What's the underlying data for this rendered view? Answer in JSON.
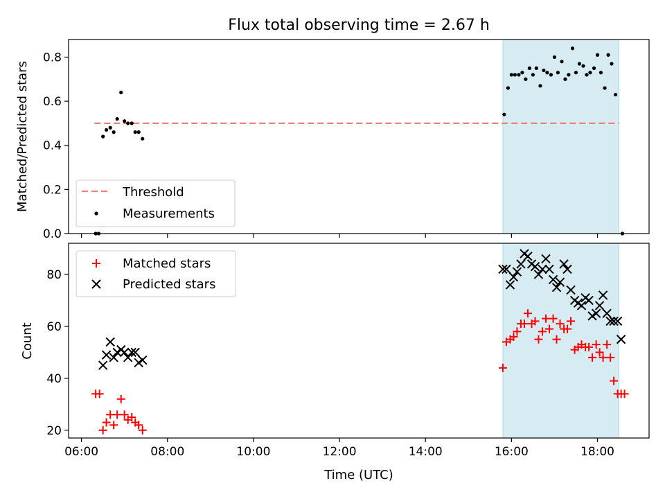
{
  "chart_data": {
    "type": "scatter",
    "title": "Flux total observing time = 2.67 h",
    "xlabel": "Time (UTC)",
    "x_tick_labels": [
      "06:00",
      "08:00",
      "10:00",
      "12:00",
      "14:00",
      "16:00",
      "18:00"
    ],
    "x_tick_hours": [
      6,
      8,
      10,
      12,
      14,
      16,
      18
    ],
    "xlim_hours": [
      5.7,
      19.2
    ],
    "highlight_span_hours": [
      15.8,
      18.5
    ],
    "colors": {
      "threshold": "#f08080",
      "measurement": "#000000",
      "matched": "#ff0000",
      "predicted": "#000000",
      "span": "#add8e6"
    },
    "panels": [
      {
        "name": "ratio",
        "ylabel": "Matched/Predicted stars",
        "ylim": [
          0,
          0.88
        ],
        "y_ticks": [
          0,
          0.2,
          0.4,
          0.6,
          0.8
        ],
        "y_tick_labels": [
          "0.0",
          "0.2",
          "0.4",
          "0.6",
          "0.8"
        ],
        "legend": {
          "placement": "lower-left",
          "entries": [
            "Threshold",
            "Measurements"
          ]
        },
        "threshold": {
          "name": "Threshold",
          "value": 0.5,
          "x_range_hours": [
            6.3,
            18.5
          ]
        },
        "measurements": {
          "name": "Measurements",
          "x_hours": [
            6.33,
            6.4,
            6.5,
            6.58,
            6.67,
            6.75,
            6.83,
            6.92,
            7.0,
            7.08,
            7.17,
            7.25,
            7.33,
            7.42,
            15.83,
            15.92,
            16.0,
            16.08,
            16.17,
            16.25,
            16.33,
            16.42,
            16.5,
            16.58,
            16.67,
            16.75,
            16.83,
            16.92,
            17.0,
            17.08,
            17.17,
            17.25,
            17.33,
            17.42,
            17.5,
            17.58,
            17.67,
            17.75,
            17.83,
            17.92,
            18.0,
            18.08,
            18.17,
            18.25,
            18.33,
            18.42,
            18.58
          ],
          "y": [
            0.0,
            0.0,
            0.44,
            0.47,
            0.48,
            0.46,
            0.52,
            0.64,
            0.51,
            0.5,
            0.5,
            0.46,
            0.46,
            0.43,
            0.54,
            0.66,
            0.72,
            0.72,
            0.72,
            0.73,
            0.7,
            0.75,
            0.72,
            0.75,
            0.67,
            0.74,
            0.73,
            0.72,
            0.8,
            0.73,
            0.78,
            0.7,
            0.72,
            0.84,
            0.73,
            0.77,
            0.76,
            0.72,
            0.73,
            0.75,
            0.81,
            0.73,
            0.66,
            0.81,
            0.77,
            0.63,
            0.0
          ]
        }
      },
      {
        "name": "count",
        "ylabel": "Count",
        "ylim": [
          17,
          92
        ],
        "y_ticks": [
          20,
          40,
          60,
          80
        ],
        "y_tick_labels": [
          "20",
          "40",
          "60",
          "80"
        ],
        "legend": {
          "placement": "upper-left",
          "entries": [
            "Matched stars",
            "Predicted stars"
          ]
        },
        "series": [
          {
            "name": "Matched stars",
            "marker": "plus",
            "x_hours": [
              6.33,
              6.42,
              6.5,
              6.58,
              6.67,
              6.75,
              6.83,
              6.92,
              7.0,
              7.08,
              7.17,
              7.25,
              7.33,
              7.42,
              15.8,
              15.88,
              15.97,
              16.05,
              16.13,
              16.22,
              16.3,
              16.38,
              16.47,
              16.55,
              16.63,
              16.72,
              16.8,
              16.88,
              16.97,
              17.05,
              17.13,
              17.22,
              17.3,
              17.38,
              17.47,
              17.55,
              17.63,
              17.72,
              17.8,
              17.88,
              17.97,
              18.05,
              18.13,
              18.22,
              18.3,
              18.38,
              18.47,
              18.55,
              18.63
            ],
            "y": [
              34,
              34,
              20,
              23,
              26,
              22,
              26,
              32,
              26,
              24,
              25,
              23,
              22,
              20,
              44,
              54,
              55,
              56,
              58,
              61,
              61,
              65,
              61,
              62,
              55,
              58,
              63,
              59,
              63,
              55,
              61,
              59,
              59,
              62,
              51,
              52,
              53,
              52,
              52,
              48,
              53,
              50,
              48,
              53,
              48,
              39,
              34,
              34,
              34
            ]
          },
          {
            "name": "Predicted stars",
            "marker": "x",
            "x_hours": [
              6.5,
              6.58,
              6.67,
              6.75,
              6.83,
              6.92,
              7.0,
              7.08,
              7.17,
              7.25,
              7.33,
              7.42,
              15.8,
              15.88,
              15.97,
              16.05,
              16.13,
              16.22,
              16.3,
              16.38,
              16.47,
              16.55,
              16.63,
              16.72,
              16.8,
              16.88,
              16.97,
              17.05,
              17.13,
              17.22,
              17.3,
              17.38,
              17.47,
              17.55,
              17.63,
              17.72,
              17.8,
              17.88,
              17.97,
              18.05,
              18.13,
              18.22,
              18.3,
              18.38,
              18.47,
              18.55
            ],
            "y": [
              45,
              49,
              54,
              48,
              50,
              51,
              50,
              48,
              50,
              50,
              46,
              47,
              82,
              82,
              76,
              79,
              81,
              84,
              88,
              87,
              84,
              83,
              80,
              82,
              86,
              82,
              78,
              75,
              77,
              84,
              82,
              74,
              70,
              69,
              68,
              71,
              70,
              64,
              65,
              68,
              72,
              65,
              62,
              62,
              62,
              55
            ]
          }
        ]
      }
    ]
  }
}
